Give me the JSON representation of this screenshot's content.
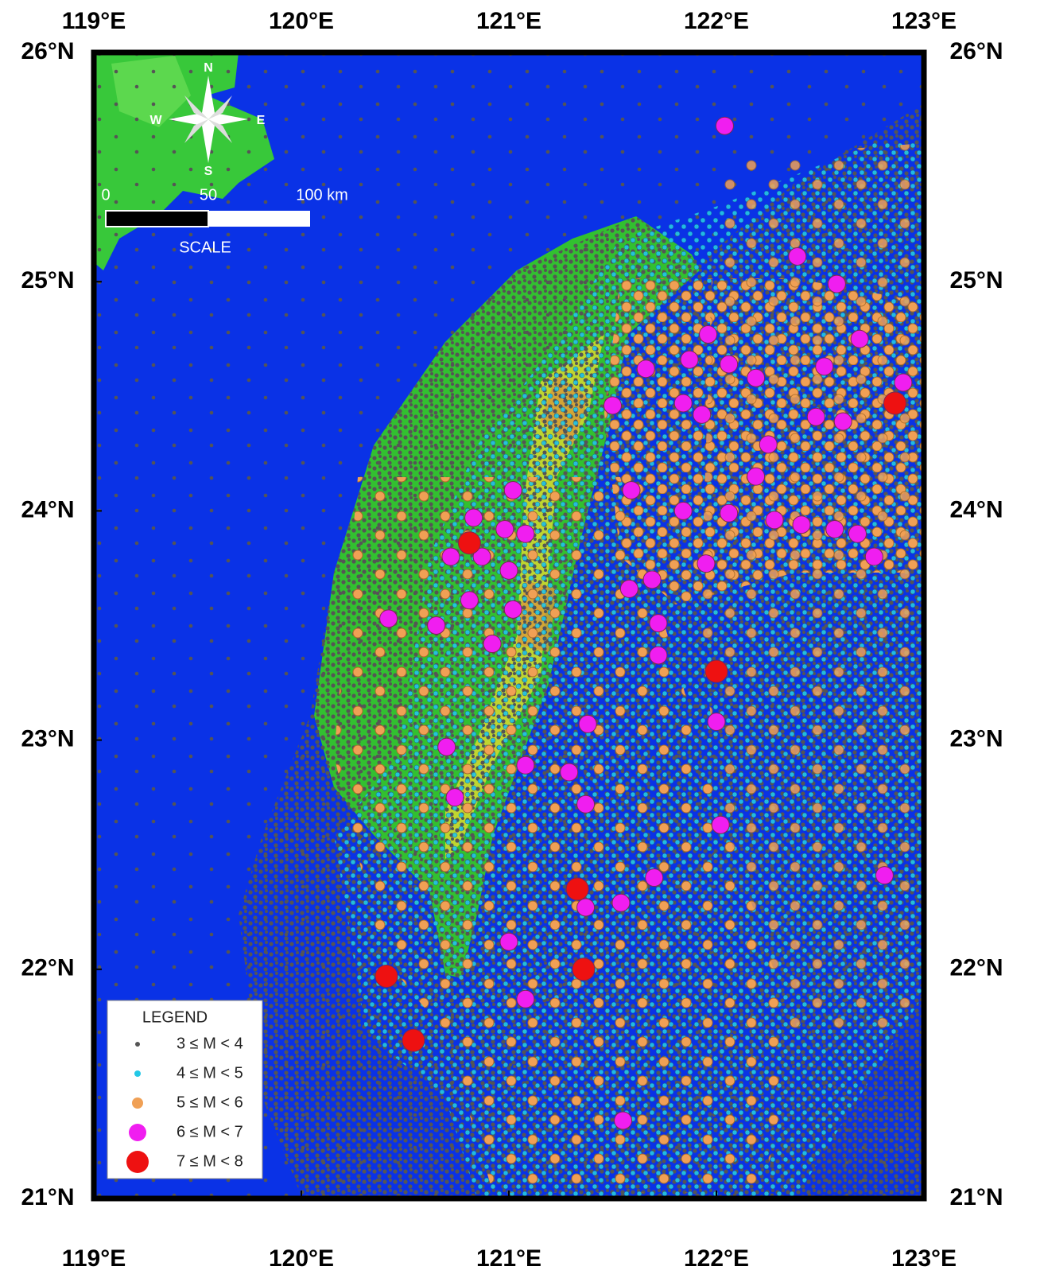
{
  "map": {
    "xlim": [
      119,
      123
    ],
    "ylim": [
      21,
      26
    ],
    "xticks": [
      {
        "value": 119,
        "label": "119°E"
      },
      {
        "value": 120,
        "label": "120°E"
      },
      {
        "value": 121,
        "label": "121°E"
      },
      {
        "value": 122,
        "label": "122°E"
      },
      {
        "value": 123,
        "label": "123°E"
      }
    ],
    "yticks": [
      {
        "value": 21,
        "label": "21°N"
      },
      {
        "value": 22,
        "label": "22°N"
      },
      {
        "value": 23,
        "label": "23°N"
      },
      {
        "value": 24,
        "label": "24°N"
      },
      {
        "value": 25,
        "label": "25°N"
      },
      {
        "value": 26,
        "label": "26°N"
      }
    ],
    "compass": {
      "north": "N",
      "south": "S",
      "east": "E",
      "west": "W"
    },
    "scale": {
      "labels": [
        "0",
        "50",
        "100 km"
      ],
      "title": "SCALE"
    },
    "legend": {
      "title": "LEGEND"
    },
    "series": [
      {
        "name": "3 ≤ M < 4",
        "color": "#555555"
      },
      {
        "name": "4 ≤ M < 5",
        "color": "#22c8e6"
      },
      {
        "name": "5 ≤ M < 6",
        "color": "#f0a055"
      },
      {
        "name": "6 ≤ M < 7",
        "color": "#f01ef0",
        "lon": [
          122.04,
          122.39,
          122.58,
          122.69,
          122.9,
          121.96,
          122.06,
          121.87,
          121.66,
          121.5,
          121.84,
          121.93,
          122.19,
          122.52,
          122.48,
          122.61,
          122.25,
          122.19,
          121.59,
          121.84,
          122.06,
          122.28,
          122.41,
          122.57,
          122.68,
          122.76,
          121.02,
          120.83,
          120.98,
          121.08,
          120.72,
          120.87,
          121.0,
          120.81,
          121.02,
          120.42,
          120.65,
          120.92,
          121.69,
          121.72,
          121.58,
          121.72,
          121.95,
          122.0,
          121.38,
          120.7,
          121.08,
          121.29,
          120.74,
          121.37,
          122.02,
          121.7,
          122.81,
          121.54,
          121.37,
          121.0,
          121.08,
          121.55
        ],
        "lat": [
          25.68,
          25.11,
          24.99,
          24.75,
          24.56,
          24.77,
          24.64,
          24.66,
          24.62,
          24.46,
          24.47,
          24.42,
          24.58,
          24.63,
          24.41,
          24.39,
          24.29,
          24.15,
          24.09,
          24.0,
          23.99,
          23.96,
          23.94,
          23.92,
          23.9,
          23.8,
          24.09,
          23.97,
          23.92,
          23.9,
          23.8,
          23.8,
          23.74,
          23.61,
          23.57,
          23.53,
          23.5,
          23.42,
          23.7,
          23.51,
          23.66,
          23.37,
          23.77,
          23.08,
          23.07,
          22.97,
          22.89,
          22.86,
          22.75,
          22.72,
          22.63,
          22.4,
          22.41,
          22.29,
          22.27,
          22.12,
          21.87,
          21.34
        ]
      },
      {
        "name": "7 ≤ M < 8",
        "color": "#ee1111",
        "lon": [
          120.81,
          122.86,
          122.0,
          121.33,
          121.36,
          120.41,
          120.54
        ],
        "lat": [
          23.86,
          24.47,
          23.3,
          22.35,
          22.0,
          21.97,
          21.69
        ]
      }
    ]
  }
}
